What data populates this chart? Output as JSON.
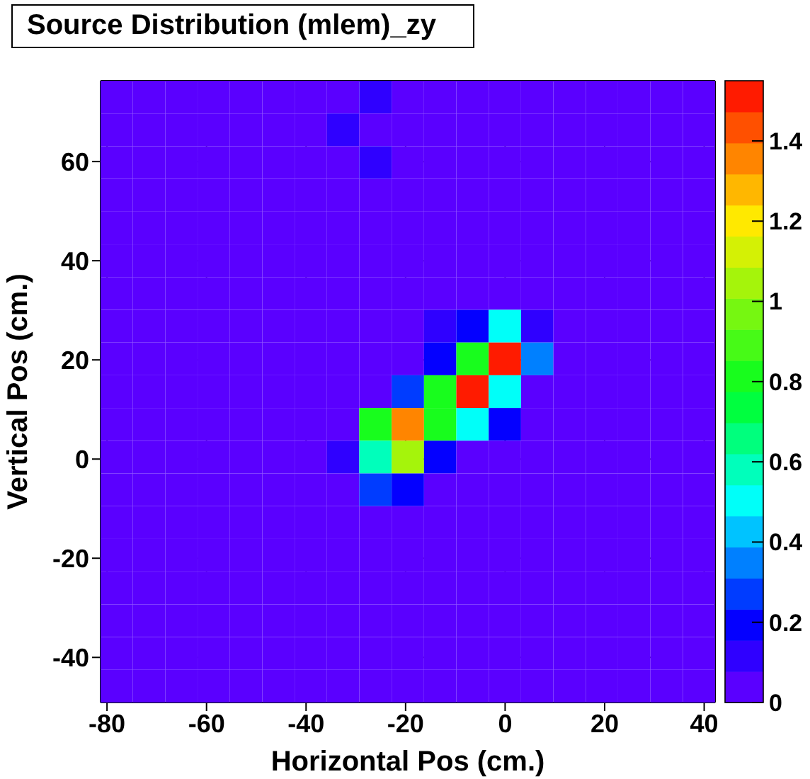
{
  "chart_data": {
    "type": "heatmap",
    "title": "Source Distribution (mlem)_zy",
    "xlabel": "Horizontal Pos (cm.)",
    "ylabel": "Vertical Pos (cm.)",
    "x": [
      -78.05,
      -71.55,
      -65.05,
      -58.55,
      -52.05,
      -45.55,
      -39.05,
      -32.55,
      -26.05,
      -19.55,
      -13.05,
      -6.55,
      -0.05,
      6.45,
      12.95,
      19.45,
      25.95,
      32.45,
      38.95
    ],
    "y": [
      73,
      66.4,
      59.8,
      53.2,
      46.6,
      40,
      33.4,
      26.8,
      20.2,
      13.6,
      7,
      0.4,
      -6.2,
      -12.8,
      -19.4,
      -26,
      -32.6,
      -39.2,
      -45.8
    ],
    "xlim": [
      -81.3,
      42.2
    ],
    "xticks": [
      -80,
      -60,
      -40,
      -20,
      0,
      20,
      40
    ],
    "ylim": [
      -49.1,
      76.3
    ],
    "yticks": [
      -40,
      -20,
      0,
      20,
      40,
      60
    ],
    "clim": [
      0,
      1.55
    ],
    "cticks": [
      0,
      0.2,
      0.4,
      0.6,
      0.8,
      1,
      1.2,
      1.4
    ],
    "grid": true,
    "cells": [
      [
        0,
        0,
        0,
        0,
        0,
        0,
        0,
        0,
        0.1,
        0,
        0,
        0,
        0,
        0,
        0,
        0,
        0,
        0,
        0
      ],
      [
        0,
        0,
        0,
        0,
        0,
        0,
        0,
        0.1,
        0,
        0,
        0,
        0,
        0,
        0,
        0,
        0,
        0,
        0,
        0
      ],
      [
        0,
        0,
        0,
        0,
        0,
        0,
        0,
        0,
        0.1,
        0,
        0,
        0,
        0,
        0,
        0,
        0,
        0,
        0,
        0
      ],
      [
        0,
        0,
        0,
        0,
        0,
        0,
        0,
        0,
        0,
        0,
        0,
        0,
        0,
        0,
        0,
        0,
        0,
        0,
        0
      ],
      [
        0,
        0,
        0,
        0,
        0,
        0,
        0,
        0,
        0,
        0,
        0,
        0,
        0,
        0,
        0,
        0,
        0,
        0,
        0
      ],
      [
        0,
        0,
        0,
        0,
        0,
        0,
        0,
        0,
        0,
        0,
        0,
        0,
        0,
        0,
        0,
        0,
        0,
        0,
        0
      ],
      [
        0,
        0,
        0,
        0,
        0,
        0,
        0,
        0,
        0,
        0,
        0,
        0,
        0,
        0,
        0,
        0,
        0,
        0,
        0
      ],
      [
        0,
        0,
        0,
        0,
        0,
        0,
        0,
        0,
        0,
        0,
        0.12,
        0.2,
        0.5,
        0.12,
        0,
        0,
        0,
        0,
        0
      ],
      [
        0,
        0,
        0,
        0,
        0,
        0,
        0,
        0,
        0,
        0,
        0.2,
        0.8,
        1.5,
        0.35,
        0,
        0,
        0,
        0,
        0
      ],
      [
        0,
        0,
        0,
        0,
        0,
        0,
        0,
        0,
        0,
        0.27,
        0.85,
        1.5,
        0.5,
        0,
        0,
        0,
        0,
        0,
        0
      ],
      [
        0,
        0,
        0,
        0,
        0,
        0,
        0,
        0,
        0.8,
        1.35,
        0.85,
        0.5,
        0.2,
        0,
        0,
        0,
        0,
        0,
        0
      ],
      [
        0,
        0,
        0,
        0,
        0,
        0,
        0,
        0.12,
        0.58,
        1.02,
        0.2,
        0,
        0,
        0,
        0,
        0,
        0,
        0,
        0
      ],
      [
        0,
        0,
        0,
        0,
        0,
        0,
        0,
        0,
        0.27,
        0.2,
        0,
        0,
        0,
        0,
        0,
        0,
        0,
        0,
        0
      ],
      [
        0,
        0,
        0,
        0,
        0,
        0,
        0,
        0,
        0,
        0,
        0,
        0,
        0,
        0,
        0,
        0,
        0,
        0,
        0
      ],
      [
        0,
        0,
        0,
        0,
        0,
        0,
        0,
        0,
        0,
        0,
        0,
        0,
        0,
        0,
        0,
        0,
        0,
        0,
        0
      ],
      [
        0,
        0,
        0,
        0,
        0,
        0,
        0,
        0,
        0,
        0,
        0,
        0,
        0,
        0,
        0,
        0,
        0,
        0,
        0
      ],
      [
        0,
        0,
        0,
        0,
        0,
        0,
        0,
        0,
        0,
        0,
        0,
        0,
        0,
        0,
        0,
        0,
        0,
        0,
        0
      ],
      [
        0,
        0,
        0,
        0,
        0,
        0,
        0,
        0,
        0,
        0,
        0,
        0,
        0,
        0,
        0,
        0,
        0,
        0,
        0
      ],
      [
        0,
        0,
        0,
        0,
        0,
        0,
        0,
        0,
        0,
        0,
        0,
        0,
        0,
        0,
        0,
        0,
        0,
        0,
        0
      ]
    ]
  }
}
